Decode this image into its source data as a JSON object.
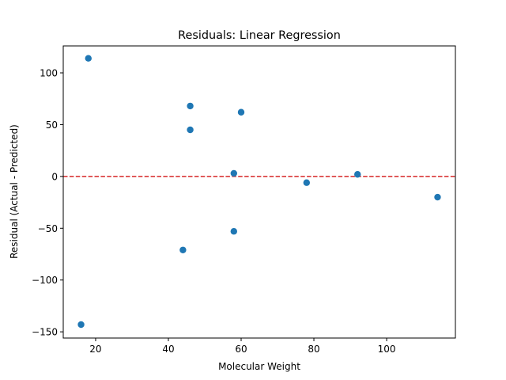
{
  "chart_data": {
    "type": "scatter",
    "title": "Residuals: Linear Regression",
    "xlabel": "Molecular Weight",
    "ylabel": "Residual (Actual - Predicted)",
    "xlim": [
      11.1,
      118.9
    ],
    "ylim": [
      -156,
      126
    ],
    "x_ticks": [
      20,
      40,
      60,
      80,
      100
    ],
    "y_ticks": [
      -150,
      -100,
      -50,
      0,
      50,
      100
    ],
    "points": [
      {
        "x": 16,
        "y": -143
      },
      {
        "x": 18,
        "y": 114
      },
      {
        "x": 44,
        "y": -71
      },
      {
        "x": 46,
        "y": 45
      },
      {
        "x": 46,
        "y": 68
      },
      {
        "x": 58,
        "y": 3
      },
      {
        "x": 58,
        "y": -53
      },
      {
        "x": 60,
        "y": 62
      },
      {
        "x": 78,
        "y": -6
      },
      {
        "x": 92,
        "y": 2
      },
      {
        "x": 114,
        "y": -20
      }
    ],
    "point_color": "#1f77b4",
    "reference_line": {
      "y": 0,
      "color": "#d62728",
      "style": "dashed"
    },
    "grid": false,
    "legend": "none"
  }
}
